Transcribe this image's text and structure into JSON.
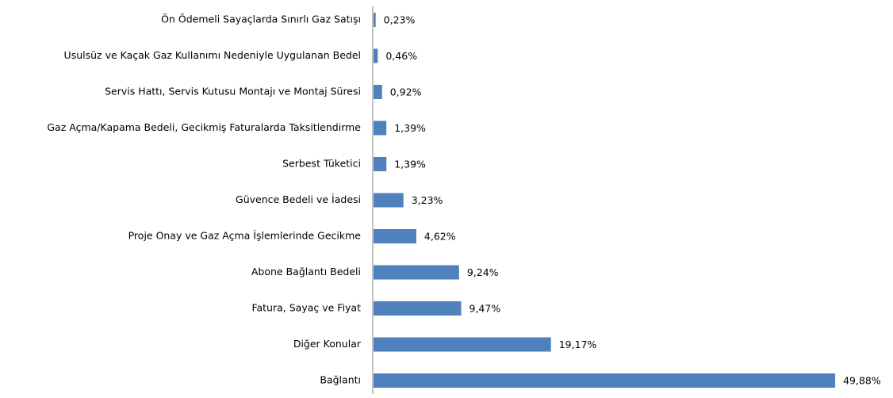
{
  "chart_data": {
    "type": "bar",
    "orientation": "horizontal",
    "color": "#4f81bd",
    "categories": [
      "Ön Ödemeli Sayaçlarda Sınırlı Gaz Satışı",
      "Usulsüz ve Kaçak Gaz Kullanımı Nedeniyle Uygulanan Bedel",
      "Servis Hattı, Servis Kutusu Montajı ve Montaj Süresi",
      "Gaz Açma/Kapama Bedeli, Gecikmiş Faturalarda Taksitlendirme",
      "Serbest Tüketici",
      "Güvence Bedeli ve İadesi",
      "Proje Onay ve Gaz Açma İşlemlerinde Gecikme",
      "Abone Bağlantı Bedeli",
      "Fatura, Sayaç ve Fiyat",
      "Diğer Konular",
      "Bağlantı"
    ],
    "values": [
      0.23,
      0.46,
      0.92,
      1.39,
      1.39,
      3.23,
      4.62,
      9.24,
      9.47,
      19.17,
      49.88
    ],
    "value_labels": [
      "0,23%",
      "0,46%",
      "0,92%",
      "1,39%",
      "1,39%",
      "3,23%",
      "4,62%",
      "9,24%",
      "9,47%",
      "19,17%",
      "49,88%"
    ]
  }
}
